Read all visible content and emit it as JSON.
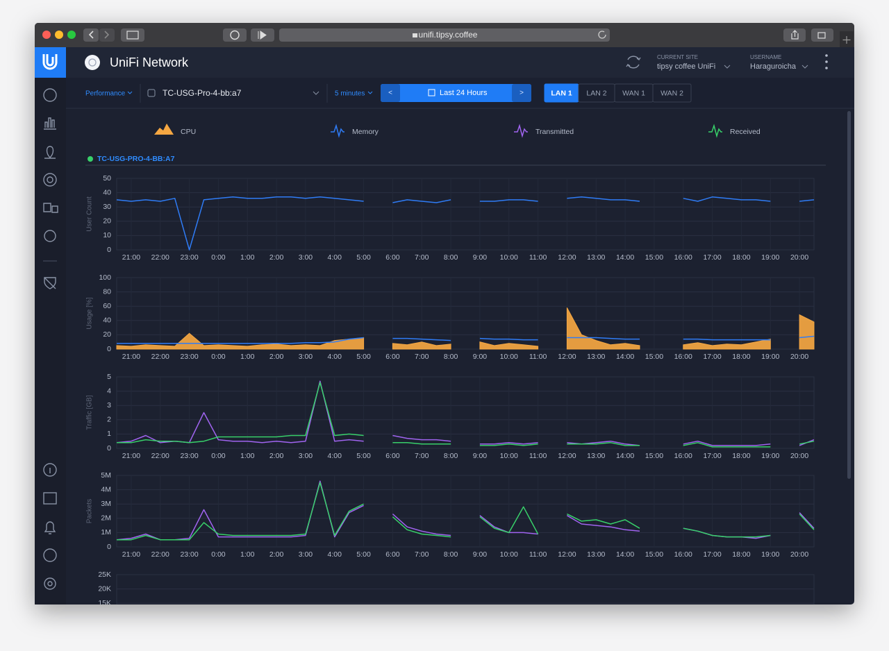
{
  "browser": {
    "url": "unifi.tipsy.coffee"
  },
  "header": {
    "app_name": "UniFi Network",
    "site_caption": "CURRENT SITE",
    "site": "tipsy coffee UniFi",
    "user_caption": "USERNAME",
    "user": "Haraguroicha"
  },
  "toolbar": {
    "view": "Performance",
    "device": "TC-USG-Pro-4-bb:a7",
    "interval": "5 minutes",
    "prev": "<",
    "range": "Last 24 Hours",
    "next": ">",
    "tabs": [
      "LAN 1",
      "LAN 2",
      "WAN 1",
      "WAN 2"
    ]
  },
  "legend": [
    {
      "label": "CPU",
      "color": "#f5a742",
      "icon": "area"
    },
    {
      "label": "Memory",
      "color": "#2f7cf6",
      "icon": "line"
    },
    {
      "label": "Transmitted",
      "color": "#a064f0",
      "icon": "line"
    },
    {
      "label": "Received",
      "color": "#38d06a",
      "icon": "line"
    }
  ],
  "device_label": "TC-USG-PRO-4-BB:A7",
  "chart_data": [
    {
      "type": "line",
      "ylabel": "User Count",
      "categories": [
        null,
        "21:00",
        null,
        "22:00",
        null,
        "23:00",
        null,
        "0:00",
        null,
        "1:00",
        null,
        "2:00",
        null,
        "3:00",
        null,
        "4:00",
        null,
        "5:00",
        null,
        "6:00",
        null,
        "7:00",
        null,
        "8:00",
        null,
        "9:00",
        null,
        "10:00",
        null,
        "11:00",
        null,
        "12:00",
        null,
        "13:00",
        null,
        "14:00",
        null,
        "15:00",
        null,
        "16:00",
        null,
        "17:00",
        null,
        "18:00",
        null,
        "19:00",
        null,
        "20:00",
        null
      ],
      "ylim": [
        0,
        50
      ],
      "yticks": [
        0,
        10,
        20,
        30,
        40,
        50
      ],
      "grid": true,
      "series": [
        {
          "color": "#2f7cf6",
          "style": "line",
          "values": [
            35,
            34,
            35,
            34,
            36,
            0,
            35,
            36,
            37,
            36,
            36,
            37,
            37,
            36,
            37,
            36,
            35,
            34,
            null,
            33,
            35,
            34,
            33,
            35,
            null,
            34,
            34,
            35,
            35,
            34,
            null,
            36,
            37,
            36,
            35,
            35,
            34,
            null,
            null,
            36,
            34,
            37,
            36,
            35,
            35,
            34,
            null,
            34,
            35
          ]
        }
      ]
    },
    {
      "type": "line",
      "ylabel": "Usage [%]",
      "categories": [
        null,
        "21:00",
        null,
        "22:00",
        null,
        "23:00",
        null,
        "0:00",
        null,
        "1:00",
        null,
        "2:00",
        null,
        "3:00",
        null,
        "4:00",
        null,
        "5:00",
        null,
        "6:00",
        null,
        "7:00",
        null,
        "8:00",
        null,
        "9:00",
        null,
        "10:00",
        null,
        "11:00",
        null,
        "12:00",
        null,
        "13:00",
        null,
        "14:00",
        null,
        "15:00",
        null,
        "16:00",
        null,
        "17:00",
        null,
        "18:00",
        null,
        "19:00",
        null,
        "20:00",
        null
      ],
      "ylim": [
        0,
        100
      ],
      "yticks": [
        0,
        20,
        40,
        60,
        80,
        100
      ],
      "grid": true,
      "series": [
        {
          "color": "#f5a742",
          "style": "area",
          "values": [
            5,
            4,
            6,
            5,
            4,
            22,
            5,
            6,
            5,
            4,
            6,
            7,
            5,
            6,
            5,
            12,
            14,
            16,
            null,
            8,
            6,
            10,
            5,
            7,
            null,
            10,
            5,
            8,
            6,
            4,
            null,
            58,
            20,
            12,
            6,
            8,
            5,
            null,
            null,
            6,
            9,
            5,
            7,
            6,
            10,
            14,
            null,
            48,
            38
          ]
        },
        {
          "color": "#2f7cf6",
          "style": "line",
          "values": [
            8,
            8,
            8,
            8,
            8,
            8,
            8,
            8,
            8,
            8,
            8,
            8,
            8,
            9,
            9,
            10,
            14,
            16,
            null,
            15,
            15,
            14,
            13,
            12,
            null,
            15,
            14,
            14,
            13,
            13,
            null,
            16,
            16,
            16,
            15,
            14,
            14,
            null,
            null,
            14,
            14,
            13,
            13,
            13,
            13,
            13,
            null,
            16,
            18
          ]
        }
      ]
    },
    {
      "type": "line",
      "ylabel": "Traffic [GB]",
      "categories": [
        null,
        "21:00",
        null,
        "22:00",
        null,
        "23:00",
        null,
        "0:00",
        null,
        "1:00",
        null,
        "2:00",
        null,
        "3:00",
        null,
        "4:00",
        null,
        "5:00",
        null,
        "6:00",
        null,
        "7:00",
        null,
        "8:00",
        null,
        "9:00",
        null,
        "10:00",
        null,
        "11:00",
        null,
        "12:00",
        null,
        "13:00",
        null,
        "14:00",
        null,
        "15:00",
        null,
        "16:00",
        null,
        "17:00",
        null,
        "18:00",
        null,
        "19:00",
        null,
        "20:00",
        null
      ],
      "ylim": [
        0,
        5
      ],
      "yticks": [
        0,
        1,
        2,
        3,
        4,
        5
      ],
      "grid": true,
      "series": [
        {
          "color": "#a064f0",
          "style": "line",
          "values": [
            0.4,
            0.5,
            0.9,
            0.4,
            0.5,
            0.4,
            2.5,
            0.6,
            0.5,
            0.5,
            0.4,
            0.5,
            0.4,
            0.5,
            4.7,
            0.5,
            0.6,
            0.5,
            null,
            0.9,
            0.7,
            0.6,
            0.6,
            0.5,
            null,
            0.3,
            0.3,
            0.4,
            0.3,
            0.4,
            null,
            0.4,
            0.3,
            0.4,
            0.5,
            0.3,
            0.2,
            null,
            null,
            0.3,
            0.5,
            0.2,
            0.2,
            0.2,
            0.2,
            0.3,
            null,
            0.2,
            0.6
          ]
        },
        {
          "color": "#38d06a",
          "style": "line",
          "values": [
            0.4,
            0.4,
            0.6,
            0.5,
            0.5,
            0.4,
            0.5,
            0.8,
            0.8,
            0.8,
            0.8,
            0.8,
            0.9,
            0.9,
            4.6,
            0.9,
            1.0,
            0.9,
            null,
            0.4,
            0.4,
            0.3,
            0.3,
            0.3,
            null,
            0.2,
            0.2,
            0.3,
            0.2,
            0.3,
            null,
            0.3,
            0.3,
            0.3,
            0.4,
            0.2,
            0.2,
            null,
            null,
            0.2,
            0.4,
            0.1,
            0.1,
            0.1,
            0.1,
            0.1,
            null,
            0.3,
            0.5
          ]
        }
      ]
    },
    {
      "type": "line",
      "ylabel": "Packets",
      "categories": [
        null,
        "21:00",
        null,
        "22:00",
        null,
        "23:00",
        null,
        "0:00",
        null,
        "1:00",
        null,
        "2:00",
        null,
        "3:00",
        null,
        "4:00",
        null,
        "5:00",
        null,
        "6:00",
        null,
        "7:00",
        null,
        "8:00",
        null,
        "9:00",
        null,
        "10:00",
        null,
        "11:00",
        null,
        "12:00",
        null,
        "13:00",
        null,
        "14:00",
        null,
        "15:00",
        null,
        "16:00",
        null,
        "17:00",
        null,
        "18:00",
        null,
        "19:00",
        null,
        "20:00",
        null
      ],
      "ylim": [
        0,
        5000000
      ],
      "yticks": [
        0,
        {
          "value": 1000000,
          "label": "1M"
        },
        {
          "value": 2000000,
          "label": "2M"
        },
        {
          "value": 3000000,
          "label": "3M"
        },
        {
          "value": 4000000,
          "label": "4M"
        },
        {
          "value": 5000000,
          "label": "5M"
        }
      ],
      "grid": true,
      "series": [
        {
          "color": "#a064f0",
          "style": "line",
          "values": [
            500000,
            600000,
            900000,
            500000,
            500000,
            600000,
            2600000,
            700000,
            700000,
            700000,
            700000,
            700000,
            700000,
            800000,
            4600000,
            700000,
            2400000,
            2900000,
            null,
            2300000,
            1400000,
            1100000,
            900000,
            800000,
            null,
            2200000,
            1400000,
            1000000,
            1000000,
            900000,
            null,
            2200000,
            1600000,
            1500000,
            1400000,
            1200000,
            1100000,
            null,
            null,
            1300000,
            1100000,
            800000,
            700000,
            700000,
            600000,
            800000,
            null,
            2400000,
            1300000
          ]
        },
        {
          "color": "#38d06a",
          "style": "line",
          "values": [
            500000,
            500000,
            800000,
            500000,
            500000,
            500000,
            1700000,
            900000,
            800000,
            800000,
            800000,
            800000,
            800000,
            900000,
            4500000,
            800000,
            2500000,
            3000000,
            null,
            2100000,
            1200000,
            900000,
            800000,
            700000,
            null,
            2100000,
            1300000,
            1000000,
            2800000,
            900000,
            null,
            2300000,
            1800000,
            1900000,
            1600000,
            1900000,
            1300000,
            null,
            null,
            1300000,
            1100000,
            800000,
            700000,
            700000,
            700000,
            800000,
            null,
            2300000,
            1200000
          ]
        }
      ]
    },
    {
      "type": "line",
      "ylim": [
        0,
        25000
      ],
      "yticks": [
        {
          "value": 15000,
          "label": "15K"
        },
        {
          "value": 20000,
          "label": "20K"
        },
        {
          "value": 25000,
          "label": "25K"
        }
      ],
      "grid": true,
      "series": []
    }
  ]
}
